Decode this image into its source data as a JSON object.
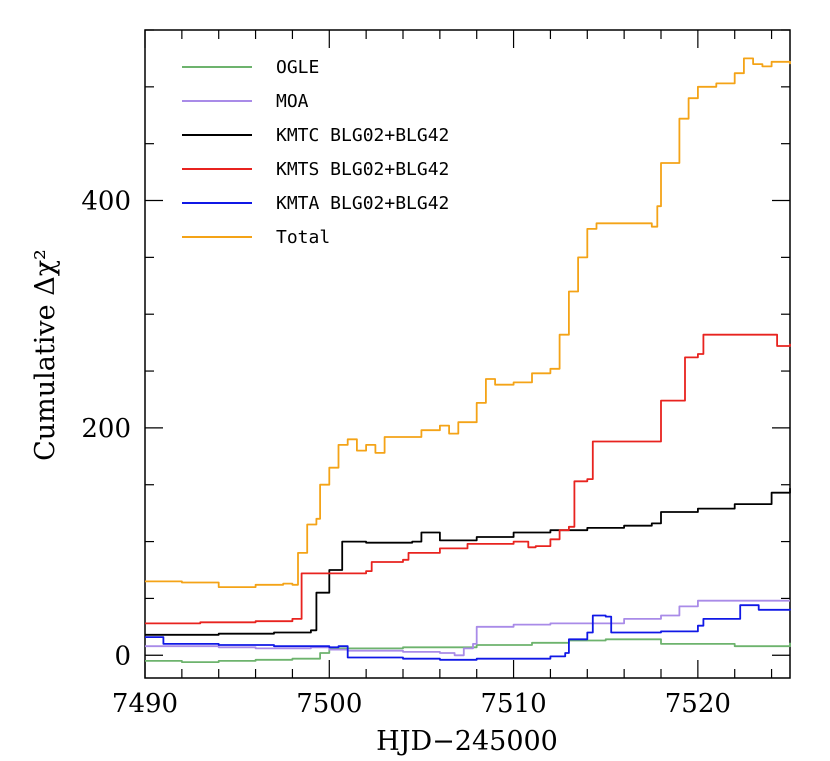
{
  "chart_data": {
    "type": "line",
    "title": "",
    "xlabel": "HJD−245000",
    "ylabel": "Cumulative Δχ²",
    "xlim": [
      7490,
      7525
    ],
    "ylim": [
      -20,
      550
    ],
    "x_ticks": [
      7490,
      7500,
      7510,
      7520
    ],
    "y_ticks": [
      0,
      200,
      400
    ],
    "legend_position": "top-left",
    "grid": false,
    "series": [
      {
        "name": "OGLE",
        "color": "#6db36d",
        "points": [
          [
            7490,
            -5
          ],
          [
            7492,
            -6
          ],
          [
            7494,
            -5
          ],
          [
            7496,
            -4
          ],
          [
            7498,
            -3
          ],
          [
            7499.5,
            2
          ],
          [
            7500,
            6
          ],
          [
            7504,
            7
          ],
          [
            7508,
            9
          ],
          [
            7511,
            11
          ],
          [
            7513,
            13
          ],
          [
            7515,
            14
          ],
          [
            7517,
            14
          ],
          [
            7518,
            10
          ],
          [
            7522,
            8
          ],
          [
            7525,
            11
          ]
        ]
      },
      {
        "name": "MOA",
        "color": "#a98be8",
        "points": [
          [
            7490,
            8
          ],
          [
            7492,
            8
          ],
          [
            7494,
            7
          ],
          [
            7496,
            6
          ],
          [
            7498,
            6
          ],
          [
            7499,
            7
          ],
          [
            7500,
            5
          ],
          [
            7501,
            4
          ],
          [
            7502,
            4
          ],
          [
            7504,
            3
          ],
          [
            7506,
            2
          ],
          [
            7506.8,
            0
          ],
          [
            7507.3,
            6
          ],
          [
            7507.8,
            10
          ],
          [
            7508,
            25
          ],
          [
            7510,
            27
          ],
          [
            7512,
            28
          ],
          [
            7514,
            28
          ],
          [
            7516,
            32
          ],
          [
            7518,
            35
          ],
          [
            7519,
            43
          ],
          [
            7520,
            48
          ],
          [
            7522,
            48
          ],
          [
            7525,
            48
          ]
        ]
      },
      {
        "name": "KMTC BLG02+BLG42",
        "color": "#000000",
        "points": [
          [
            7490,
            18
          ],
          [
            7494,
            19
          ],
          [
            7497,
            20
          ],
          [
            7498.5,
            20
          ],
          [
            7499,
            22
          ],
          [
            7499.3,
            55
          ],
          [
            7500,
            75
          ],
          [
            7500.5,
            75
          ],
          [
            7500.7,
            100
          ],
          [
            7502,
            99
          ],
          [
            7504.5,
            100
          ],
          [
            7505,
            108
          ],
          [
            7506,
            101
          ],
          [
            7508,
            104
          ],
          [
            7510,
            108
          ],
          [
            7512,
            110
          ],
          [
            7514,
            112
          ],
          [
            7516,
            114
          ],
          [
            7517.5,
            116
          ],
          [
            7518,
            126
          ],
          [
            7520,
            129
          ],
          [
            7522,
            133
          ],
          [
            7524,
            143
          ],
          [
            7525,
            147
          ]
        ]
      },
      {
        "name": "KMTS BLG02+BLG42",
        "color": "#e8231f",
        "points": [
          [
            7490,
            28
          ],
          [
            7493,
            29
          ],
          [
            7496,
            30
          ],
          [
            7498,
            32
          ],
          [
            7498.5,
            72
          ],
          [
            7500,
            72
          ],
          [
            7502,
            74
          ],
          [
            7502.3,
            82
          ],
          [
            7503,
            82
          ],
          [
            7504,
            84
          ],
          [
            7504.3,
            90
          ],
          [
            7506,
            94
          ],
          [
            7507.5,
            98
          ],
          [
            7510,
            100
          ],
          [
            7510.8,
            95
          ],
          [
            7511.2,
            96
          ],
          [
            7512,
            102
          ],
          [
            7512.5,
            110
          ],
          [
            7513,
            113
          ],
          [
            7513.3,
            153
          ],
          [
            7514,
            155
          ],
          [
            7514.3,
            188
          ],
          [
            7517,
            188
          ],
          [
            7517.8,
            188
          ],
          [
            7518,
            224
          ],
          [
            7519,
            224
          ],
          [
            7519.3,
            262
          ],
          [
            7520,
            265
          ],
          [
            7520.3,
            282
          ],
          [
            7524,
            282
          ],
          [
            7524.3,
            272
          ],
          [
            7525,
            274
          ]
        ]
      },
      {
        "name": "KMTA BLG02+BLG42",
        "color": "#1018e6",
        "points": [
          [
            7490,
            16
          ],
          [
            7491,
            10
          ],
          [
            7494,
            9
          ],
          [
            7497,
            8
          ],
          [
            7500,
            7
          ],
          [
            7500.5,
            8
          ],
          [
            7501,
            -2
          ],
          [
            7504,
            -3
          ],
          [
            7506,
            -4
          ],
          [
            7508,
            -3
          ],
          [
            7510,
            -3
          ],
          [
            7512,
            -1
          ],
          [
            7512.8,
            2
          ],
          [
            7513,
            14
          ],
          [
            7514,
            20
          ],
          [
            7514.3,
            35
          ],
          [
            7515,
            34
          ],
          [
            7515.3,
            20
          ],
          [
            7518,
            21
          ],
          [
            7520,
            26
          ],
          [
            7520.3,
            32
          ],
          [
            7522,
            32
          ],
          [
            7522.3,
            44
          ],
          [
            7523,
            44
          ],
          [
            7523.3,
            40
          ],
          [
            7525,
            41
          ]
        ]
      },
      {
        "name": "Total",
        "color": "#f4a317",
        "points": [
          [
            7490,
            65
          ],
          [
            7492,
            64
          ],
          [
            7494,
            60
          ],
          [
            7496,
            62
          ],
          [
            7497.5,
            63
          ],
          [
            7498,
            62
          ],
          [
            7498.3,
            90
          ],
          [
            7498.8,
            115
          ],
          [
            7499.3,
            120
          ],
          [
            7499.5,
            150
          ],
          [
            7500,
            165
          ],
          [
            7500.5,
            185
          ],
          [
            7501,
            190
          ],
          [
            7501.5,
            180
          ],
          [
            7502,
            185
          ],
          [
            7502.5,
            178
          ],
          [
            7503,
            192
          ],
          [
            7505,
            198
          ],
          [
            7506,
            202
          ],
          [
            7506.5,
            195
          ],
          [
            7507,
            205
          ],
          [
            7508,
            222
          ],
          [
            7508.5,
            243
          ],
          [
            7509,
            238
          ],
          [
            7510,
            240
          ],
          [
            7511,
            248
          ],
          [
            7512,
            252
          ],
          [
            7512.5,
            282
          ],
          [
            7513,
            320
          ],
          [
            7513.5,
            350
          ],
          [
            7514,
            375
          ],
          [
            7514.5,
            380
          ],
          [
            7517.5,
            377
          ],
          [
            7517.8,
            395
          ],
          [
            7518,
            433
          ],
          [
            7518.5,
            433
          ],
          [
            7519,
            472
          ],
          [
            7519.5,
            490
          ],
          [
            7520,
            500
          ],
          [
            7521,
            503
          ],
          [
            7522,
            512
          ],
          [
            7522.5,
            525
          ],
          [
            7523,
            520
          ],
          [
            7523.5,
            518
          ],
          [
            7524,
            522
          ],
          [
            7525,
            520
          ]
        ]
      }
    ]
  }
}
